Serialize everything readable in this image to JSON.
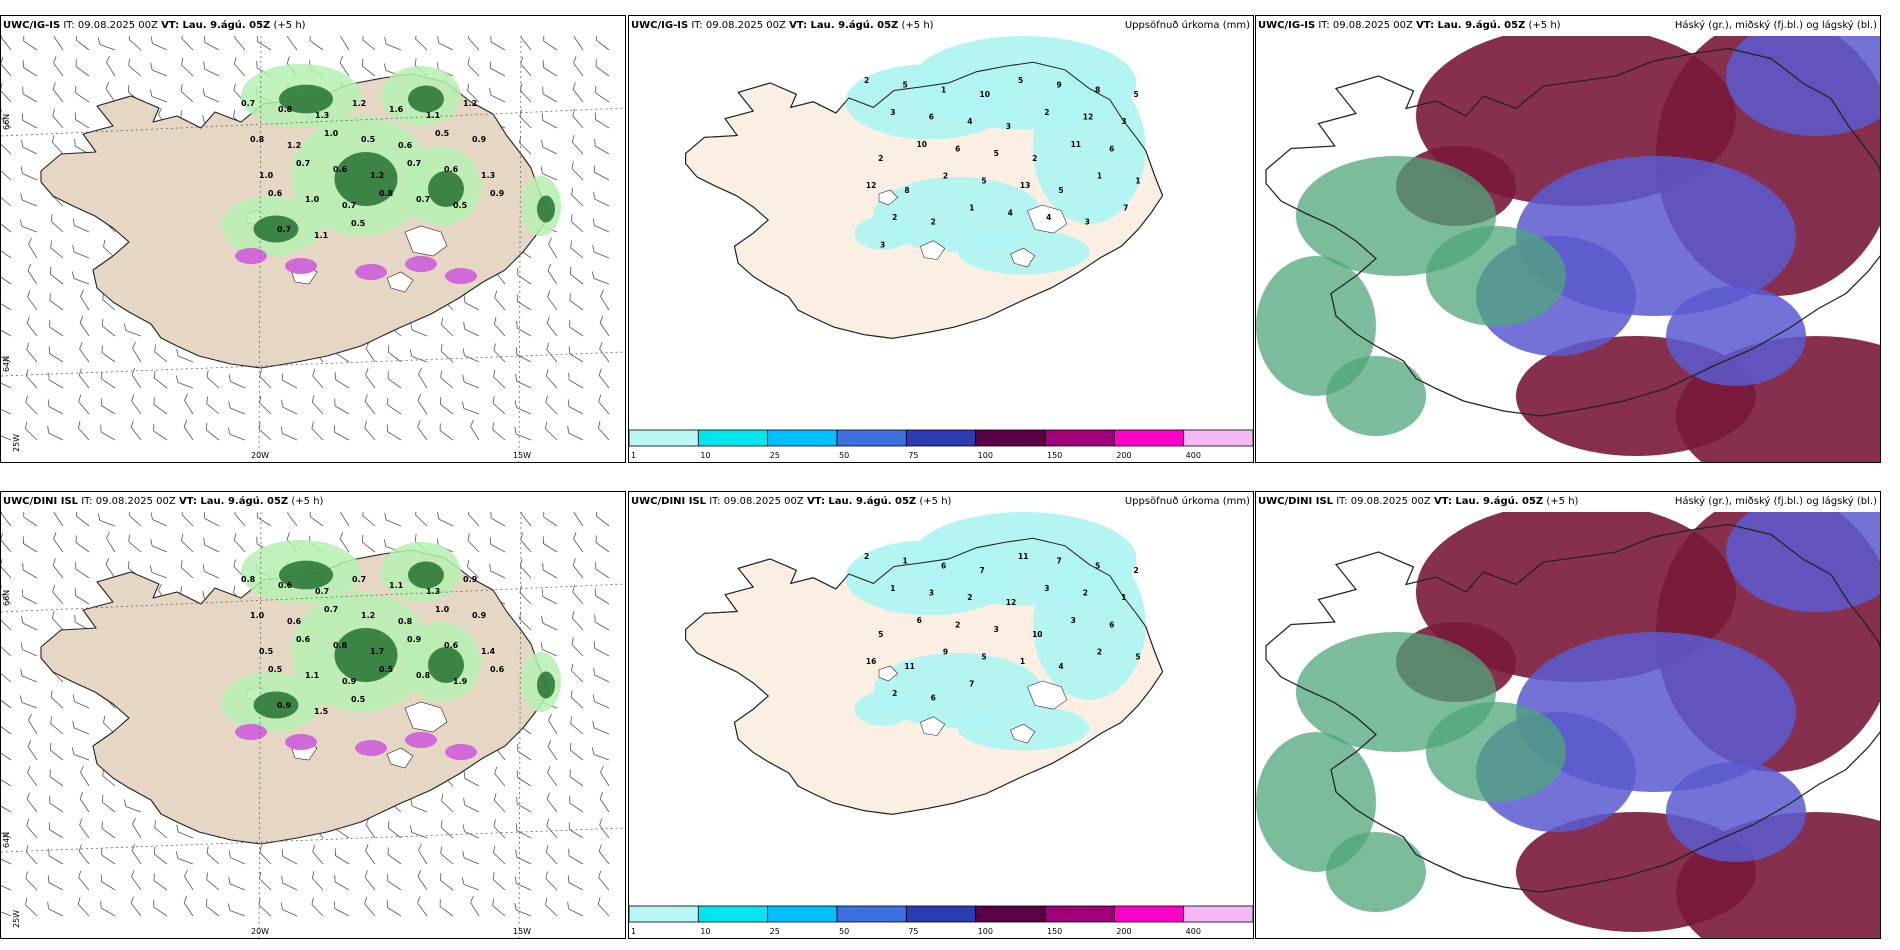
{
  "issue_time": "IT: 09.08.2025 00Z",
  "valid_time": "VT: Lau. 9.ágú. 05Z",
  "lead_time": "(+5 h)",
  "rows": [
    {
      "model": "UWC/IG-IS",
      "panels": {
        "wind_precip": {
          "values": [
            "0.7",
            "0.8",
            "1.3",
            "1.2",
            "1.6",
            "1.1",
            "1.2",
            "0.8",
            "1.2",
            "1.0",
            "0.5",
            "0.6",
            "0.5",
            "0.9",
            "1.0",
            "0.7",
            "0.6",
            "1.2",
            "0.7",
            "0.6",
            "1.3",
            "0.6",
            "1.0",
            "0.7",
            "0.8",
            "0.7",
            "0.5",
            "0.9",
            "0.7",
            "1.1",
            "0.5"
          ]
        },
        "accum_precip": {
          "title": "Uppsöfnuð úrkoma (mm)",
          "values": [
            "2",
            "5",
            "1",
            "10",
            "5",
            "9",
            "8",
            "5",
            "3",
            "6",
            "4",
            "3",
            "2",
            "12",
            "3",
            "2",
            "10",
            "6",
            "5",
            "2",
            "11",
            "6",
            "12",
            "8",
            "2",
            "5",
            "13",
            "5",
            "1",
            "1",
            "2",
            "2",
            "1",
            "4",
            "4",
            "3",
            "7",
            "3"
          ]
        },
        "clouds": {
          "title": "Háský (gr.), miðský (fj.bl.) og lágský (bl.)"
        }
      }
    },
    {
      "model": "UWC/DINI ISL",
      "panels": {
        "wind_precip": {
          "values": [
            "0.8",
            "0.6",
            "0.7",
            "0.7",
            "1.1",
            "1.3",
            "0.9",
            "1.0",
            "0.6",
            "0.7",
            "1.2",
            "0.8",
            "1.0",
            "0.9",
            "0.5",
            "0.6",
            "0.8",
            "1.7",
            "0.9",
            "0.6",
            "1.4",
            "0.5",
            "1.1",
            "0.9",
            "0.5",
            "0.8",
            "1.9",
            "0.6",
            "0.9",
            "1.5",
            "0.5"
          ]
        },
        "accum_precip": {
          "title": "Uppsöfnuð úrkoma (mm)",
          "values": [
            "2",
            "1",
            "6",
            "7",
            "11",
            "7",
            "5",
            "2",
            "1",
            "3",
            "2",
            "12",
            "3",
            "2",
            "1",
            "5",
            "6",
            "2",
            "3",
            "10",
            "3",
            "6",
            "16",
            "11",
            "9",
            "5",
            "1",
            "4",
            "2",
            "5",
            "2",
            "6",
            "7"
          ]
        },
        "clouds": {
          "title": "Háský (gr.), miðský (fj.bl.) og lágský (bl.)"
        }
      }
    }
  ],
  "axis_labels": {
    "lat_top": "66N",
    "lat_bottom": "64N",
    "lon_left": "20W",
    "lon_right": "15W",
    "lon_edge": "25W"
  },
  "colorbar": {
    "ticks": [
      "1",
      "10",
      "25",
      "50",
      "75",
      "100",
      "150",
      "200",
      "400"
    ],
    "colors": [
      "#b9f6f6",
      "#00e5ee",
      "#00bfff",
      "#3c6fe0",
      "#2a3cb3",
      "#5a0045",
      "#a0007a",
      "#ff00c8",
      "#f6b7f6"
    ]
  },
  "colors": {
    "land": "#e6d7c5",
    "land_light": "#fbefe4",
    "precip_light": "#b5f0b0",
    "precip_dark": "#1a6a2a",
    "snow_magenta": "#d06ad8",
    "accum_cyan": "#b0f4f2",
    "high_cloud": "#4fa67a",
    "mid_cloud": "#5a5ad0",
    "low_cloud": "#7a1a3a"
  }
}
